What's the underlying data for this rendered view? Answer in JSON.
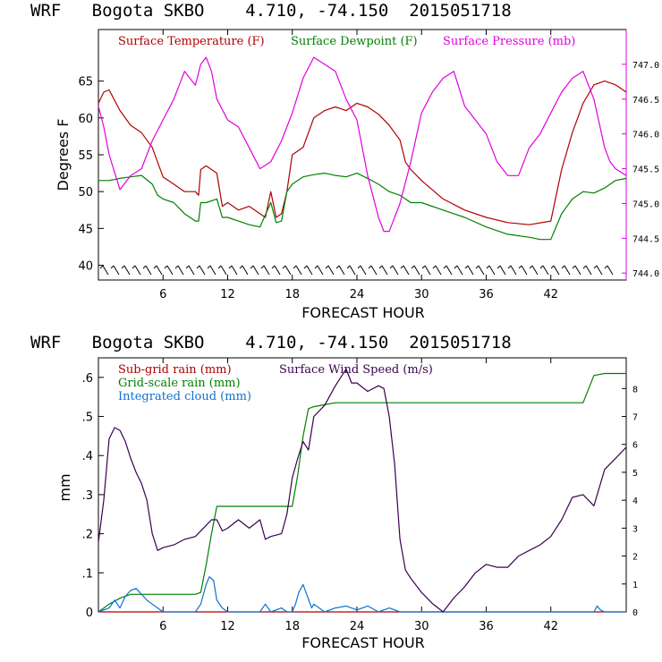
{
  "chart_data": [
    {
      "type": "line",
      "title": "WRF   Bogota SKBO    4.710, -74.150  2015051718",
      "xlabel": "FORECAST HOUR",
      "ylabel": "Degrees F",
      "xlim": [
        0,
        49
      ],
      "ylim": [
        38,
        72
      ],
      "y2lim": [
        743.9,
        747.5
      ],
      "xticks": [
        6,
        12,
        18,
        24,
        30,
        36,
        42
      ],
      "yticks": [
        40,
        45,
        50,
        55,
        60,
        65
      ],
      "y2ticks": [
        "744.0",
        "744.5",
        "745.0",
        "745.5",
        "746.0",
        "746.5",
        "747.0"
      ],
      "y2tick_values": [
        744.0,
        744.5,
        745.0,
        745.5,
        746.0,
        746.5,
        747.0
      ],
      "wind_barbs": "row of wind barbs along the bottom",
      "series": [
        {
          "name": "Surface Temperature (F)",
          "color": "#b00000",
          "axis": "left",
          "x": [
            0,
            0.5,
            1,
            2,
            3,
            4,
            5,
            6,
            7,
            8,
            9,
            9.3,
            9.5,
            10,
            11,
            11.5,
            12,
            13,
            14,
            15,
            15.5,
            16,
            16.5,
            17,
            17.5,
            18,
            19,
            20,
            21,
            22,
            23,
            24,
            25,
            26,
            27,
            27.5,
            28,
            28.5,
            29,
            30,
            32,
            34,
            36,
            38,
            40,
            42,
            43,
            44,
            45,
            46,
            47,
            48,
            49
          ],
          "y": [
            62,
            63.5,
            63.8,
            61,
            59,
            58,
            56,
            52,
            51,
            50,
            50,
            49.5,
            53,
            53.5,
            52.5,
            48,
            48.5,
            47.5,
            48,
            47,
            46.5,
            50,
            46.5,
            47,
            50,
            55,
            56,
            60,
            61,
            61.5,
            61,
            62,
            61.5,
            60.5,
            59,
            58,
            57,
            54,
            53,
            51.5,
            49,
            47.5,
            46.5,
            45.8,
            45.5,
            46,
            53,
            58,
            62,
            64.5,
            65,
            64.5,
            63.5
          ]
        },
        {
          "name": "Surface Dewpoint (F)",
          "color": "#008000",
          "axis": "left",
          "x": [
            0,
            0.5,
            1,
            2,
            3,
            4,
            5,
            5.5,
            6,
            7,
            8,
            9,
            9.3,
            9.5,
            10,
            11,
            11.5,
            12,
            13,
            14,
            15,
            16,
            16.5,
            17,
            17.5,
            18,
            19,
            20,
            21,
            22,
            23,
            24,
            25,
            26,
            27,
            28,
            29,
            30,
            32,
            34,
            36,
            38,
            40,
            41,
            42,
            43,
            44,
            45,
            46,
            47,
            48,
            49
          ],
          "y": [
            51.5,
            51.5,
            51.5,
            51.8,
            52,
            52.2,
            51,
            49.5,
            49,
            48.5,
            47,
            46,
            46,
            48.5,
            48.5,
            49,
            46.5,
            46.5,
            46,
            45.5,
            45.2,
            48.5,
            45.8,
            46,
            50,
            51,
            52,
            52.3,
            52.5,
            52.2,
            52,
            52.5,
            51.8,
            51,
            50,
            49.5,
            48.5,
            48.5,
            47.5,
            46.5,
            45.2,
            44.2,
            43.8,
            43.5,
            43.5,
            47,
            49,
            50,
            49.8,
            50.5,
            51.5,
            51.8
          ]
        },
        {
          "name": "Surface Pressure (mb)",
          "color": "#e000e0",
          "axis": "right",
          "x": [
            0,
            0.5,
            1,
            2,
            3,
            4,
            5,
            6,
            7,
            8,
            9,
            9.5,
            10,
            10.5,
            11,
            12,
            13,
            14,
            15,
            16,
            17,
            18,
            19,
            20,
            21,
            22,
            23,
            24,
            25,
            26,
            26.5,
            27,
            28,
            29,
            30,
            31,
            32,
            33,
            34,
            35,
            36,
            37,
            38,
            39,
            40,
            41,
            42,
            43,
            44,
            45,
            46,
            47,
            47.5,
            48,
            49
          ],
          "y": [
            746.4,
            746.1,
            745.7,
            745.2,
            745.4,
            745.5,
            745.9,
            746.2,
            746.5,
            746.9,
            746.7,
            747.0,
            747.1,
            746.9,
            746.5,
            746.2,
            746.1,
            745.8,
            745.5,
            745.6,
            745.9,
            746.3,
            746.8,
            747.1,
            747.0,
            746.9,
            746.5,
            746.2,
            745.4,
            744.8,
            744.6,
            744.6,
            745.0,
            745.6,
            746.3,
            746.6,
            746.8,
            746.9,
            746.4,
            746.2,
            746.0,
            745.6,
            745.4,
            745.4,
            745.8,
            746.0,
            746.3,
            746.6,
            746.8,
            746.9,
            746.5,
            745.8,
            745.6,
            745.5,
            745.4
          ]
        }
      ]
    },
    {
      "type": "line",
      "title": "WRF   Bogota SKBO    4.710, -74.150  2015051718",
      "xlabel": "FORECAST HOUR",
      "ylabel": "mm",
      "xlim": [
        0,
        49
      ],
      "ylim": [
        0,
        0.65
      ],
      "y2lim": [
        0,
        9.1
      ],
      "xticks": [
        6,
        12,
        18,
        24,
        30,
        36,
        42
      ],
      "yticks": [
        0,
        0.1,
        0.2,
        0.3,
        0.4,
        0.5,
        0.6
      ],
      "ytick_labels": [
        "0",
        ".1",
        ".2",
        ".3",
        ".4",
        ".5",
        ".6"
      ],
      "y2ticks": [
        "0",
        "1",
        "2",
        "3",
        "4",
        "5",
        "6",
        "7",
        "8"
      ],
      "y2tick_values": [
        0,
        1,
        2,
        3,
        4,
        5,
        6,
        7,
        8
      ],
      "series": [
        {
          "name": "Sub-grid rain (mm)",
          "color": "#b00000",
          "axis": "left",
          "x": [
            0,
            49
          ],
          "y": [
            0,
            0
          ]
        },
        {
          "name": "Grid-scale rain (mm)",
          "color": "#008000",
          "axis": "left",
          "x": [
            0,
            1,
            2,
            3,
            5,
            7,
            9,
            9.5,
            10,
            10.5,
            11,
            12,
            13,
            14,
            16,
            17,
            18,
            18.5,
            19,
            19.5,
            20,
            21,
            22,
            24,
            26,
            28,
            30,
            34,
            38,
            42,
            45,
            46,
            47,
            49
          ],
          "y": [
            0,
            0.02,
            0.035,
            0.045,
            0.045,
            0.045,
            0.045,
            0.05,
            0.12,
            0.2,
            0.27,
            0.27,
            0.27,
            0.27,
            0.27,
            0.27,
            0.27,
            0.35,
            0.45,
            0.52,
            0.525,
            0.53,
            0.535,
            0.535,
            0.535,
            0.535,
            0.535,
            0.535,
            0.535,
            0.535,
            0.535,
            0.605,
            0.61,
            0.61
          ]
        },
        {
          "name": "Integrated cloud (mm)",
          "color": "#1070d0",
          "axis": "left",
          "x": [
            0,
            1,
            1.5,
            2,
            2.5,
            3,
            3.5,
            4,
            4.5,
            5,
            5.5,
            6,
            9,
            9.5,
            10,
            10.3,
            10.7,
            11,
            11.5,
            12,
            15,
            15.5,
            16,
            17,
            17.5,
            18,
            18.3,
            18.6,
            19,
            19.4,
            19.8,
            20,
            21,
            22,
            23,
            24,
            25,
            26,
            27,
            28,
            46,
            46.3,
            46.6,
            47,
            49
          ],
          "y": [
            0,
            0.01,
            0.03,
            0.01,
            0.04,
            0.055,
            0.06,
            0.045,
            0.03,
            0.02,
            0.01,
            0,
            0,
            0.02,
            0.07,
            0.09,
            0.08,
            0.03,
            0.01,
            0,
            0,
            0.02,
            0,
            0.01,
            0,
            0,
            0.02,
            0.05,
            0.07,
            0.04,
            0.01,
            0.02,
            0,
            0.01,
            0.015,
            0.005,
            0.015,
            0,
            0.01,
            0,
            0,
            0.015,
            0.005,
            0,
            0
          ]
        },
        {
          "name": "Surface Wind Speed (m/s)",
          "color": "#3a0050",
          "axis": "right",
          "x": [
            0,
            0.5,
            1,
            1.5,
            2,
            2.5,
            3,
            3.5,
            4,
            4.5,
            5,
            5.5,
            6,
            7,
            8,
            9,
            10,
            10.5,
            11,
            11.5,
            12,
            13,
            14,
            15,
            15.5,
            16,
            17,
            17.5,
            18,
            18.5,
            19,
            19.5,
            20,
            21,
            22,
            23,
            23.5,
            24,
            25,
            26,
            26.5,
            27,
            27.5,
            28,
            28.5,
            29,
            30,
            31,
            32,
            33,
            34,
            35,
            36,
            37,
            38,
            39,
            40,
            41,
            42,
            43,
            44,
            45,
            46,
            47,
            48,
            49
          ],
          "y": [
            2.5,
            4,
            6.2,
            6.6,
            6.5,
            6.1,
            5.5,
            5.0,
            4.6,
            4.0,
            2.8,
            2.2,
            2.3,
            2.4,
            2.6,
            2.7,
            3.1,
            3.3,
            3.3,
            2.9,
            3.0,
            3.3,
            3.0,
            3.3,
            2.6,
            2.7,
            2.8,
            3.5,
            4.8,
            5.5,
            6.1,
            5.8,
            7.0,
            7.4,
            8.1,
            8.7,
            8.2,
            8.2,
            7.9,
            8.1,
            8.0,
            7.0,
            5.3,
            2.6,
            1.5,
            1.2,
            0.7,
            0.3,
            0.0,
            0.5,
            0.9,
            1.4,
            1.7,
            1.6,
            1.6,
            2.0,
            2.2,
            2.4,
            2.7,
            3.3,
            4.1,
            4.2,
            3.8,
            5.1,
            5.5,
            5.9
          ]
        }
      ]
    }
  ]
}
